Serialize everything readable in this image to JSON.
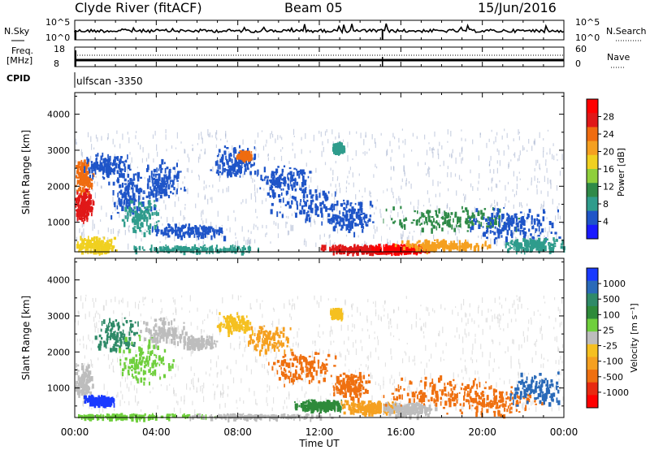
{
  "header": {
    "station": "Clyde River (fitACF)",
    "beam": "Beam 05",
    "date": "15/Jun/2016"
  },
  "noise_panel": {
    "left_label": "N.Sky",
    "right_label": "N.Search",
    "ticks_left": [
      "10^5",
      "10^0"
    ],
    "ticks_right": [
      "10^5",
      "10^0"
    ]
  },
  "freq_panel": {
    "left_label_line1": "Freq.",
    "left_label_line2": "[MHz]",
    "right_label": "Nave",
    "ticks_left": [
      "18",
      "8"
    ],
    "ticks_right": [
      "60",
      "0"
    ]
  },
  "cpid": {
    "label": "CPID",
    "value": "ulfscan -3350"
  },
  "chart_data": [
    {
      "type": "heatmap",
      "quantity": "Power",
      "ylabel": "Slant Range [km]",
      "xlabel": "Time UT",
      "x_range_hours": [
        0,
        24
      ],
      "y_range_km": [
        180,
        4600
      ],
      "yticks": [
        1000,
        2000,
        3000,
        4000
      ],
      "xtick_labels": [
        "00:00",
        "04:00",
        "08:00",
        "12:00",
        "16:00",
        "20:00",
        "00:00"
      ],
      "colorbar": {
        "label": "Power [dB]",
        "ticks": [
          "4",
          "8",
          "12",
          "16",
          "20",
          "24",
          "28"
        ],
        "colors": [
          "#1a1aff",
          "#1f55c8",
          "#2f9c8c",
          "#2f8a48",
          "#8fcf3c",
          "#f0d020",
          "#f5a020",
          "#ef6c10",
          "#e01818",
          "#ff0000"
        ]
      }
    },
    {
      "type": "heatmap",
      "quantity": "Velocity",
      "ylabel": "Slant Range [km]",
      "xlabel": "Time UT",
      "x_range_hours": [
        0,
        24
      ],
      "y_range_km": [
        180,
        4600
      ],
      "yticks": [
        1000,
        2000,
        3000,
        4000
      ],
      "xtick_labels": [
        "00:00",
        "04:00",
        "08:00",
        "12:00",
        "16:00",
        "20:00",
        "00:00"
      ],
      "colorbar": {
        "label": "Velocity [m s⁻¹]",
        "ticks": [
          "1000",
          "500",
          "100",
          "25",
          "-25",
          "-100",
          "-500",
          "-1000"
        ],
        "colors": [
          "#1a3aff",
          "#2a6ab8",
          "#2f8a68",
          "#2e8a3a",
          "#6fcf3c",
          "#bdbdbd",
          "#f5c020",
          "#f5a020",
          "#ef7010",
          "#e82a10",
          "#ff0000"
        ]
      }
    }
  ],
  "x_axis_title": "Time UT"
}
